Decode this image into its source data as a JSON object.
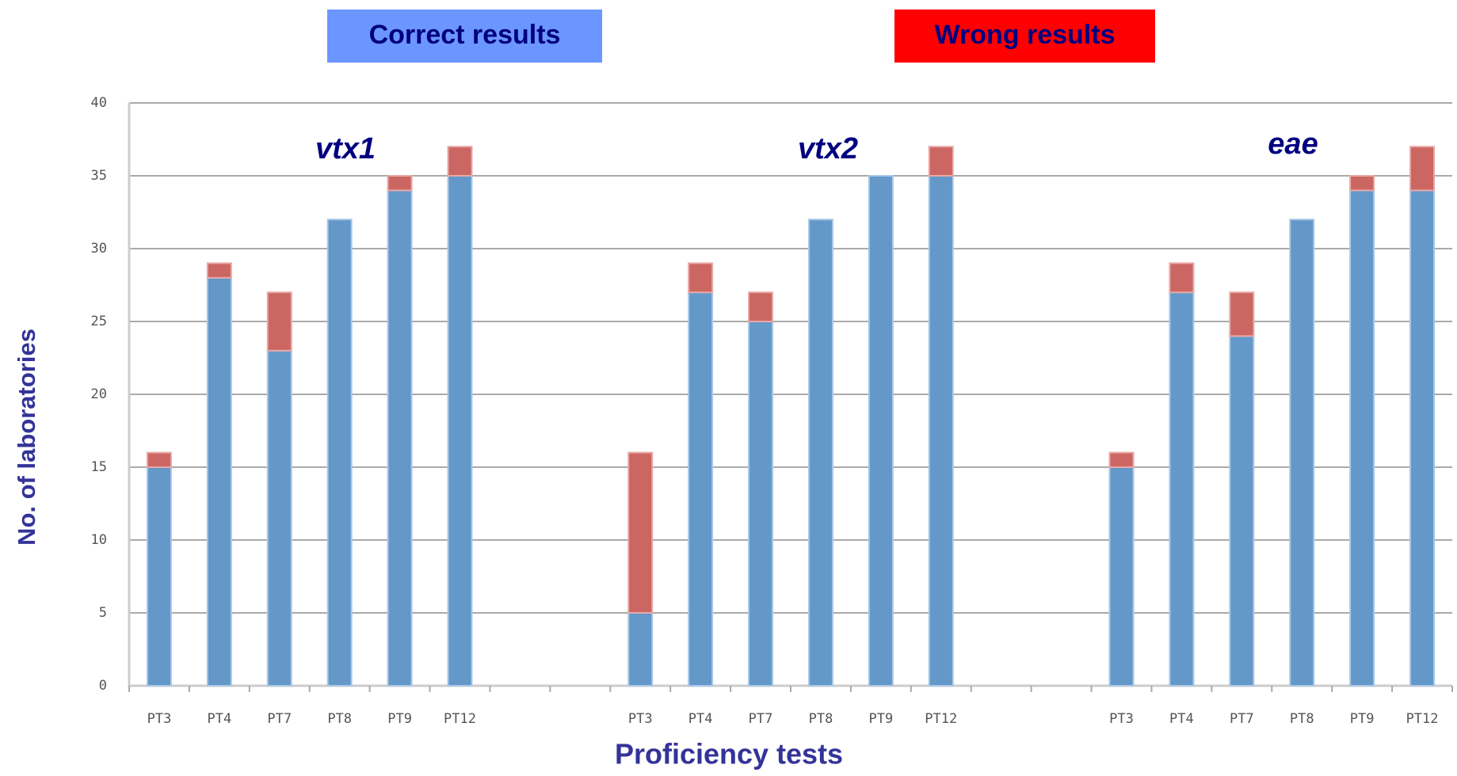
{
  "chart_data": {
    "type": "stacked_bar",
    "y_label": "No. of laboratories",
    "x_label": "Proficiency tests",
    "annotations": [
      "vtx1",
      "vtx2",
      "eae"
    ],
    "categories": [
      "PT3",
      "PT4",
      "PT7",
      "PT8",
      "PT9",
      "PT12",
      null,
      null,
      "PT3",
      "PT4",
      "PT7",
      "PT8",
      "PT9",
      "PT12",
      null,
      null,
      "PT3",
      "PT4",
      "PT7",
      "PT8",
      "PT9",
      "PT12"
    ],
    "series": [
      {
        "name": "Correct results",
        "color": "#6398c9",
        "box_color": "#6b96ff",
        "values": [
          15,
          28,
          23,
          32,
          34,
          35,
          null,
          null,
          5,
          27,
          25,
          32,
          35,
          35,
          null,
          null,
          15,
          27,
          24,
          32,
          34,
          34
        ]
      },
      {
        "name": "Wrong results",
        "color": "#cc6662",
        "box_color": "#ff0000",
        "values": [
          1,
          1,
          4,
          0,
          1,
          2,
          null,
          null,
          11,
          2,
          2,
          0,
          0,
          2,
          null,
          null,
          1,
          2,
          3,
          0,
          1,
          3
        ]
      }
    ],
    "ylim": [
      0,
      40
    ],
    "yticks": [
      0,
      5,
      10,
      15,
      20,
      25,
      30,
      35,
      40
    ],
    "grid": true
  }
}
